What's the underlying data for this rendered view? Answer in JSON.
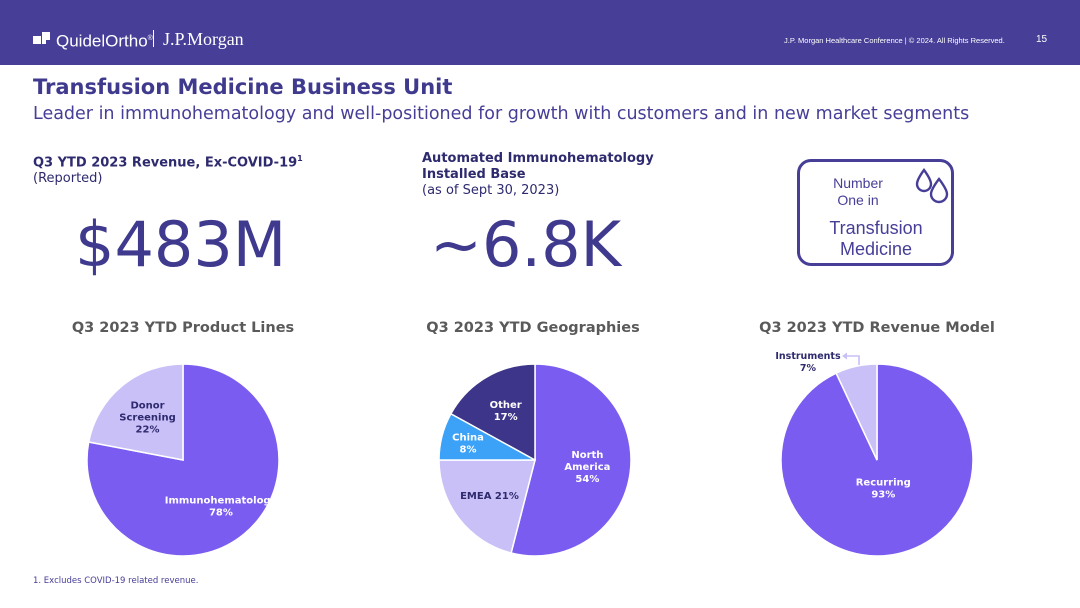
{
  "header": {
    "brand_primary": "QuidelOrtho",
    "brand_mark": "®",
    "brand_secondary": "J.P.Morgan",
    "conference_text": "J.P. Morgan Healthcare Conference   |   © 2024. All Rights Reserved.",
    "page_number": "15"
  },
  "slide": {
    "title": "Transfusion Medicine Business Unit",
    "subtitle": "Leader in immunohematology and well-positioned for growth with customers and in new market segments"
  },
  "stats": {
    "revenue_label_bold": "Q3 YTD 2023 Revenue, Ex-COVID-19",
    "revenue_label_sup": "1",
    "revenue_label_rest": " (Reported)",
    "revenue_value": "$483M",
    "base_label_bold": "Automated Immunohematology Installed Base",
    "base_label_rest": "(as of Sept 30, 2023)",
    "base_value": "~6.8K"
  },
  "badge": {
    "line1": "Number",
    "line2": "One in",
    "line3": "Transfusion",
    "line4": "Medicine",
    "icon": "droplets-icon"
  },
  "colors": {
    "header_bg": "#463e97",
    "primary_purple": "#7b5cf0",
    "light_lavender": "#c9c0f7",
    "dark_navy": "#3c3589",
    "bright_blue": "#3ba2f8",
    "text_dark": "#2e2a6e"
  },
  "chart_data": [
    {
      "type": "pie",
      "title": "Q3 2023 YTD Product Lines",
      "slices": [
        {
          "label": "Immunohematology",
          "value": 78,
          "value_label": "78%",
          "color": "#7b5cf0"
        },
        {
          "label": "Donor Screening",
          "value": 22,
          "value_label": "22%",
          "color": "#c9c0f7"
        }
      ]
    },
    {
      "type": "pie",
      "title": "Q3 2023 YTD Geographies",
      "slices": [
        {
          "label": "North America",
          "value": 54,
          "value_label": "54%",
          "color": "#7b5cf0"
        },
        {
          "label": "EMEA",
          "value": 21,
          "value_label": "21%",
          "color": "#c9c0f7"
        },
        {
          "label": "China",
          "value": 8,
          "value_label": "8%",
          "color": "#3ba2f8"
        },
        {
          "label": "Other",
          "value": 17,
          "value_label": "17%",
          "color": "#3c3589"
        }
      ]
    },
    {
      "type": "pie",
      "title": "Q3 2023 YTD Revenue Model",
      "slices": [
        {
          "label": "Recurring",
          "value": 93,
          "value_label": "93%",
          "color": "#7b5cf0"
        },
        {
          "label": "Instruments",
          "value": 7,
          "value_label": "7%",
          "color": "#c9c0f7"
        }
      ]
    }
  ],
  "footnote": "1. Excludes COVID-19 related revenue."
}
